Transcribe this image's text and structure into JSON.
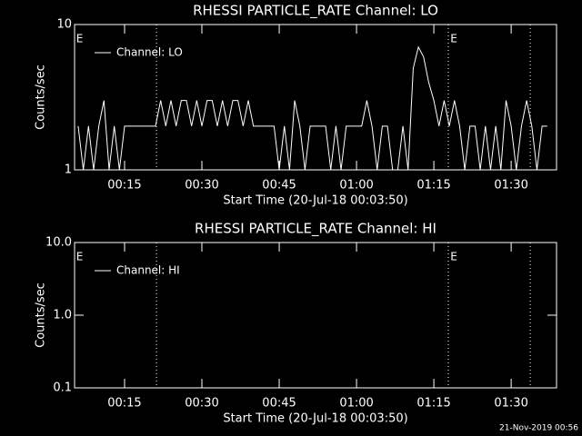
{
  "chart_data": [
    {
      "type": "line",
      "title": "RHESSI PARTICLE_RATE Channel: LO",
      "xlabel": "Start Time (20-Jul-18 00:03:50)",
      "ylabel": "Counts/sec",
      "log_y": true,
      "legend": "upper left",
      "xlim": [
        5.3,
        98.8
      ],
      "xticks": [
        {
          "value": 15,
          "label": "00:15"
        },
        {
          "value": 30,
          "label": "00:30"
        },
        {
          "value": 45,
          "label": "00:45"
        },
        {
          "value": 60,
          "label": "01:00"
        },
        {
          "value": 75,
          "label": "01:15"
        },
        {
          "value": 90,
          "label": "01:30"
        }
      ],
      "ylim": [
        1,
        10
      ],
      "yticks": [
        1,
        10
      ],
      "vlines": [
        21.2,
        77.8,
        93.7
      ],
      "annotations": [
        {
          "text": "E",
          "x": 5.6
        },
        {
          "text": "E",
          "x": 78.2
        }
      ],
      "x": [
        6,
        7,
        8,
        9,
        10,
        11,
        12,
        13,
        14,
        15,
        16,
        17,
        18,
        19,
        20,
        21,
        22,
        23,
        24,
        25,
        26,
        27,
        28,
        29,
        30,
        31,
        32,
        33,
        34,
        35,
        36,
        37,
        38,
        39,
        40,
        41,
        42,
        43,
        44,
        45,
        46,
        47,
        48,
        49,
        50,
        51,
        52,
        53,
        54,
        55,
        56,
        57,
        58,
        59,
        60,
        61,
        62,
        63,
        64,
        65,
        66,
        67,
        68,
        69,
        70,
        71,
        72,
        73,
        74,
        75,
        76,
        77,
        78,
        79,
        80,
        81,
        82,
        83,
        84,
        85,
        86,
        87,
        88,
        89,
        90,
        91,
        92,
        93,
        94,
        95,
        96,
        97
      ],
      "series": [
        {
          "name": "Channel: LO",
          "color": "#ffffff",
          "values": [
            2,
            1,
            2,
            1,
            2,
            3,
            1,
            2,
            1,
            2,
            2,
            2,
            2,
            2,
            2,
            2,
            3,
            2,
            3,
            2,
            3,
            3,
            2,
            3,
            2,
            3,
            3,
            2,
            3,
            2,
            3,
            3,
            2,
            3,
            2,
            2,
            2,
            2,
            2,
            1,
            2,
            1,
            3,
            2,
            1,
            2,
            2,
            2,
            2,
            1,
            2,
            1,
            2,
            2,
            2,
            2,
            3,
            2,
            1,
            2,
            2,
            1,
            1,
            2,
            1,
            5,
            7,
            6,
            4,
            3,
            2,
            3,
            2,
            3,
            2,
            1,
            2,
            2,
            1,
            2,
            1,
            2,
            1,
            3,
            2,
            1,
            2,
            3,
            2,
            1,
            2,
            2
          ]
        }
      ]
    },
    {
      "type": "line",
      "title": "RHESSI PARTICLE_RATE Channel: HI",
      "xlabel": "Start Time (20-Jul-18 00:03:50)",
      "ylabel": "Counts/sec",
      "log_y": true,
      "legend": "upper left",
      "xlim": [
        5.3,
        98.8
      ],
      "xticks": [
        {
          "value": 15,
          "label": "00:15"
        },
        {
          "value": 30,
          "label": "00:30"
        },
        {
          "value": 45,
          "label": "00:45"
        },
        {
          "value": 60,
          "label": "01:00"
        },
        {
          "value": 75,
          "label": "01:15"
        },
        {
          "value": 90,
          "label": "01:30"
        }
      ],
      "ylim": [
        0.1,
        10
      ],
      "yticks": [
        0.1,
        {
          "value": 1,
          "label": "1.0"
        },
        {
          "value": 10,
          "label": "10.0"
        }
      ],
      "vlines": [
        21.2,
        77.8,
        93.7
      ],
      "annotations": [
        {
          "text": "E",
          "x": 5.6
        },
        {
          "text": "E",
          "x": 78.2
        }
      ],
      "x": [],
      "series": [
        {
          "name": "Channel: HI",
          "color": "#ffffff",
          "values": []
        }
      ]
    }
  ],
  "footer": "21-Nov-2019 00:56"
}
